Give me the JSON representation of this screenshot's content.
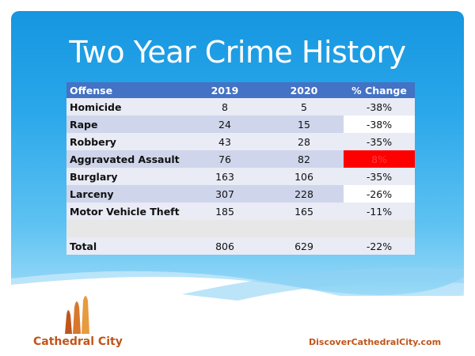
{
  "slide": {
    "title": "Two Year Crime History"
  },
  "table": {
    "headers": [
      "Offense",
      "2019",
      "2020",
      "% Change"
    ],
    "rows": [
      {
        "offense": "Homicide",
        "y2019": "8",
        "y2020": "5",
        "change": "-38%"
      },
      {
        "offense": "Rape",
        "y2019": "24",
        "y2020": "15",
        "change": "-38%"
      },
      {
        "offense": "Robbery",
        "y2019": "43",
        "y2020": "28",
        "change": "-35%"
      },
      {
        "offense": "Aggravated Assault",
        "y2019": "76",
        "y2020": "82",
        "change": "8%"
      },
      {
        "offense": "Burglary",
        "y2019": "163",
        "y2020": "106",
        "change": "-35%"
      },
      {
        "offense": "Larceny",
        "y2019": "307",
        "y2020": "228",
        "change": "-26%"
      },
      {
        "offense": "Motor Vehicle Theft",
        "y2019": "185",
        "y2020": "165",
        "change": "-11%"
      }
    ],
    "total": {
      "offense": "Total",
      "y2019": "806",
      "y2020": "629",
      "change": "-22%"
    }
  },
  "footer": {
    "city_name": "Cathedral City",
    "website": "DiscoverCathedralCity.com"
  },
  "colors": {
    "header_bg": "#4472c4",
    "row_odd": "#cfd5ea",
    "row_even": "#e9ebf5",
    "highlight_increase": "#ff0000",
    "brand_orange": "#c0551b"
  }
}
